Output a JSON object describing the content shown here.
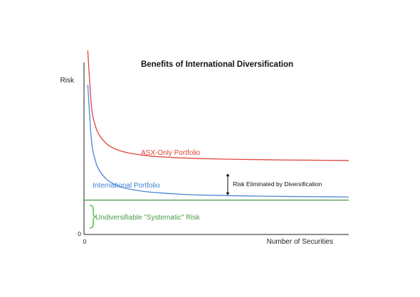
{
  "chart_data": {
    "type": "line",
    "title": "Benefits of International Diversification",
    "xlabel": "Number of Securities",
    "ylabel": "Risk",
    "x_ticks": [
      "0"
    ],
    "y_ticks": [
      "0"
    ],
    "grid": false,
    "legend": "none",
    "series": [
      {
        "name": "ASX-Only Portfolio",
        "color": "#e0453c",
        "x": [
          0.5,
          1,
          1.5,
          2,
          3,
          4,
          5,
          6,
          8,
          10,
          12,
          15,
          20,
          25,
          30,
          35
        ],
        "y": [
          10.7,
          7.4,
          6.33,
          5.8,
          5.27,
          5.0,
          4.84,
          4.73,
          4.6,
          4.52,
          4.47,
          4.42,
          4.37,
          4.34,
          4.32,
          4.3
        ]
      },
      {
        "name": "International Portfolio",
        "color": "#4a86d8",
        "x": [
          0.5,
          1,
          1.5,
          2,
          3,
          4,
          5,
          6,
          8,
          10,
          12,
          15,
          20,
          25,
          30,
          35
        ],
        "y": [
          8.7,
          5.4,
          4.3,
          3.75,
          3.2,
          2.92,
          2.75,
          2.64,
          2.5,
          2.42,
          2.36,
          2.3,
          2.25,
          2.22,
          2.2,
          2.18
        ]
      },
      {
        "name": "Undiversifiable \"Systematic\" Risk",
        "color": "#4a9a45",
        "x": [
          0,
          35
        ],
        "y": [
          2.0,
          2.0
        ]
      }
    ],
    "annotations": [
      {
        "text": "Risk Eliminated by Diversification",
        "x": 19,
        "y_from": 2.28,
        "y_to": 3.55
      }
    ],
    "xlim": [
      0,
      35
    ],
    "ylim": [
      0,
      10
    ]
  }
}
